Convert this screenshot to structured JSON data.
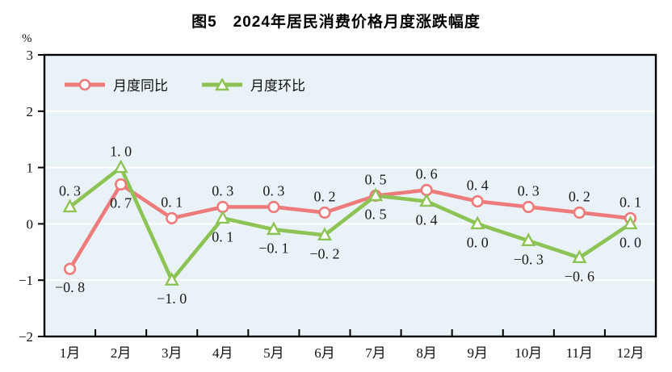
{
  "figure": {
    "title": "图5　2024年居民消费价格月度涨跌幅度",
    "unit_label": "%"
  },
  "legend": [
    {
      "name": "月度同比",
      "marker": "circle",
      "color": "#ee7b7b"
    },
    {
      "name": "月度环比",
      "marker": "triangle",
      "color": "#8dc355"
    }
  ],
  "chart_data": {
    "type": "line",
    "title": "图5　2024年居民消费价格月度涨跌幅度",
    "ylabel": "%",
    "categories": [
      "1月",
      "2月",
      "3月",
      "4月",
      "5月",
      "6月",
      "7月",
      "8月",
      "9月",
      "10月",
      "11月",
      "12月"
    ],
    "ylim": [
      -2,
      3
    ],
    "yticks": [
      3,
      2,
      1,
      0,
      -1,
      -2
    ],
    "ytick_labels": [
      "3",
      "2",
      "1",
      "0",
      "−1",
      "−2"
    ],
    "grid": "horizontal",
    "gridline_color": "#ffffff",
    "plot_background": "#e9f2f6",
    "axis_color": "#000000",
    "legend_position": "inside-top-left",
    "series": [
      {
        "name": "月度同比",
        "marker": "circle",
        "color": "#ee7b7b",
        "values": [
          -0.8,
          0.7,
          0.1,
          0.3,
          0.3,
          0.2,
          0.5,
          0.6,
          0.4,
          0.3,
          0.2,
          0.1
        ],
        "labels": [
          "−0. 8",
          "0. 7",
          "0. 1",
          "0. 3",
          "0. 3",
          "0. 2",
          "0. 5",
          "0. 6",
          "0. 4",
          "0. 3",
          "0. 2",
          "0. 1"
        ],
        "label_side": [
          "below",
          "below",
          "above",
          "above",
          "above",
          "above",
          "above",
          "above",
          "above",
          "above",
          "above",
          "above"
        ]
      },
      {
        "name": "月度环比",
        "marker": "triangle",
        "color": "#8dc355",
        "values": [
          0.3,
          1.0,
          -1.0,
          0.1,
          -0.1,
          -0.2,
          0.5,
          0.4,
          0.0,
          -0.3,
          -0.6,
          0.0
        ],
        "labels": [
          "0. 3",
          "1. 0",
          "−1. 0",
          "0. 1",
          "−0. 1",
          "−0. 2",
          "0. 5",
          "0. 4",
          "0. 0",
          "−0. 3",
          "−0. 6",
          "0. 0"
        ],
        "label_side": [
          "above",
          "above",
          "below",
          "below",
          "below",
          "below",
          "below",
          "below",
          "below",
          "below",
          "below",
          "below"
        ]
      }
    ]
  }
}
